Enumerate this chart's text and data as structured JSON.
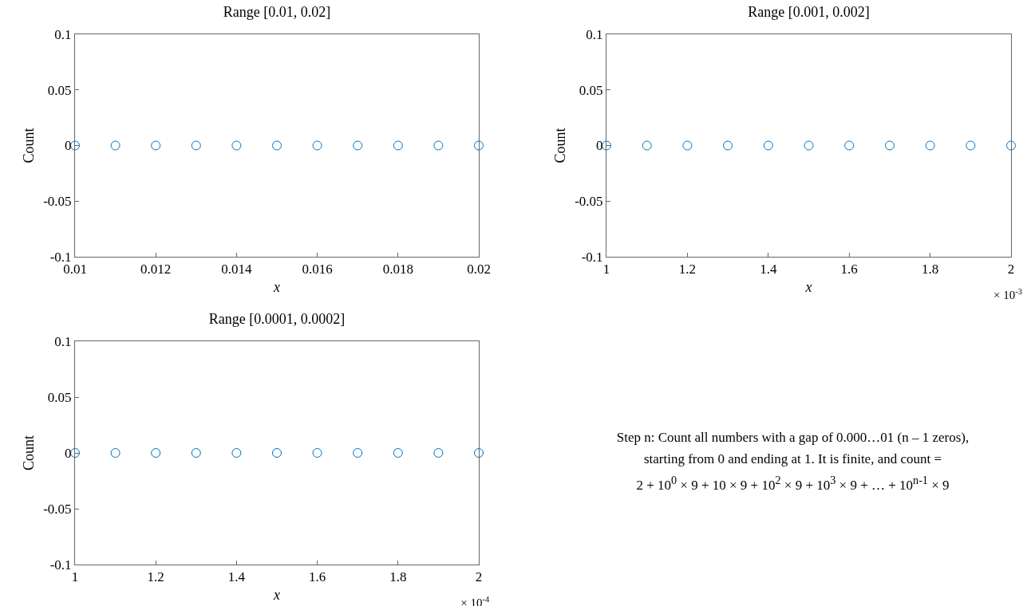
{
  "chart_data": [
    {
      "type": "scatter",
      "title": "Range [0.01, 0.02]",
      "xlabel": "x",
      "ylabel": "Count",
      "color": "#0072bd",
      "marker": "circle",
      "x": [
        0.01,
        0.011,
        0.012,
        0.013,
        0.014,
        0.015,
        0.016,
        0.017,
        0.018,
        0.019,
        0.02
      ],
      "values": [
        0,
        0,
        0,
        0,
        0,
        0,
        0,
        0,
        0,
        0,
        0
      ],
      "xlim": [
        0.01,
        0.02
      ],
      "xticks": [
        0.01,
        0.012,
        0.014,
        0.016,
        0.018,
        0.02
      ],
      "ylim": [
        -0.1,
        0.1
      ],
      "yticks": [
        -0.1,
        -0.05,
        0,
        0.05,
        0.1
      ]
    },
    {
      "type": "scatter",
      "title": "Range [0.001, 0.002]",
      "xlabel": "x",
      "ylabel": "Count",
      "color": "#0072bd",
      "marker": "circle",
      "x": [
        1,
        1.1,
        1.2,
        1.3,
        1.4,
        1.5,
        1.6,
        1.7,
        1.8,
        1.9,
        2
      ],
      "values": [
        0,
        0,
        0,
        0,
        0,
        0,
        0,
        0,
        0,
        0,
        0
      ],
      "xlim": [
        1,
        2
      ],
      "xticks": [
        1,
        1.2,
        1.4,
        1.6,
        1.8,
        2
      ],
      "ylim": [
        -0.1,
        0.1
      ],
      "yticks": [
        -0.1,
        -0.05,
        0,
        0.05,
        0.1
      ],
      "annotations": [
        "× 10$^{-3}$"
      ]
    },
    {
      "type": "scatter",
      "title": "Range [0.0001, 0.0002]",
      "xlabel": "x",
      "ylabel": "Count",
      "color": "#0072bd",
      "marker": "circle",
      "x": [
        1,
        1.1,
        1.2,
        1.3,
        1.4,
        1.5,
        1.6,
        1.7,
        1.8,
        1.9,
        2
      ],
      "values": [
        0,
        0,
        0,
        0,
        0,
        0,
        0,
        0,
        0,
        0,
        0
      ],
      "xlim": [
        1,
        2
      ],
      "xticks": [
        1,
        1.2,
        1.4,
        1.6,
        1.8,
        2
      ],
      "ylim": [
        -0.1,
        0.1
      ],
      "yticks": [
        -0.1,
        -0.05,
        0,
        0.05,
        0.1
      ],
      "annotations": [
        "× 10$^{-4}$"
      ]
    },
    {
      "type": "other",
      "annotations": [
        "Step n: Count all numbers with a gap of 0.000…01 (n – 1 zeros),",
        "starting from 0 and ending at 1. It is finite, and count =",
        "2 + 10$^{0}$ × 9 + 10 × 9 + 10$^{2}$ × 9 + 10$^{3}$ × 9 + … + 10$^{n-1}$ × 9"
      ]
    }
  ]
}
